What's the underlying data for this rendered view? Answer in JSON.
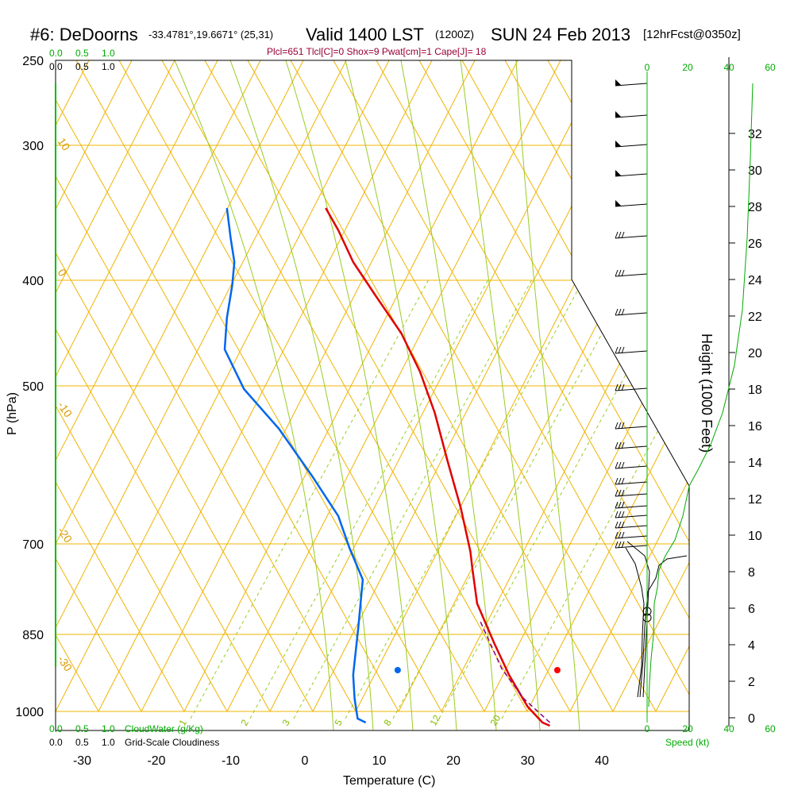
{
  "header": {
    "station": "#6: DeDoorns",
    "coords": "-33.4781°,19.6671° (25,31)",
    "valid": "Valid 1400 LST",
    "zulu": "(1200Z)",
    "date": "SUN 24 Feb 2013",
    "forecast": "[12hrFcst@0350z]",
    "params": "Plcl=651 Tlcl[C]=0 Shox=9 Pwat[cm]=1 Cape[J]= 18"
  },
  "chart_data": {
    "type": "line",
    "xlabel": "Temperature (C)",
    "ylabel": "P (hPa)",
    "y2label": "Height (1000 Feet)",
    "x_ticks": [
      "-30",
      "-20",
      "-10",
      "0",
      "10",
      "20",
      "30",
      "40"
    ],
    "xlim": [
      -35,
      45
    ],
    "p_ticks": [
      "250",
      "300",
      "400",
      "500",
      "700",
      "850",
      "1000"
    ],
    "height_ticks": [
      "0",
      "2",
      "4",
      "6",
      "8",
      "10",
      "12",
      "14",
      "16",
      "18",
      "20",
      "22",
      "24",
      "26",
      "28",
      "30",
      "32"
    ],
    "cloud_scale_top_green": [
      "0.0",
      "0.5",
      "1.0"
    ],
    "cloud_scale_top_black": [
      "0.0",
      "0.5",
      "1.0"
    ],
    "cloud_scale_bottom_green": [
      "0.0",
      "0.5",
      "1.0"
    ],
    "cloud_scale_bottom_black": [
      "0.0",
      "0.5",
      "1.0"
    ],
    "cloudwater_label": "CloudWater (g/Kg)",
    "cloudiness_label": "Grid-Scale Cloudiness",
    "speed_ticks": [
      "0",
      "20",
      "40",
      "60"
    ],
    "speed_label": "Speed (kt)",
    "adiabat_labels_left": [
      "10",
      "0",
      "-10",
      "-20",
      "-30"
    ],
    "adiabat_labels_right": [
      "0",
      "10",
      "20",
      "30"
    ],
    "mixing_ratio_labels": [
      "1",
      "2",
      "3",
      "5",
      "8",
      "12",
      "20"
    ],
    "series": [
      {
        "name": "Temperature",
        "color": "#e00000",
        "points": [
          [
            2.8,
            262
          ],
          [
            4.5,
            290
          ],
          [
            6.5,
            330
          ],
          [
            9.5,
            372
          ],
          [
            13,
            420
          ],
          [
            15.5,
            468
          ],
          [
            17.5,
            520
          ],
          [
            19.2,
            580
          ],
          [
            21.0,
            640
          ],
          [
            22.3,
            695
          ],
          [
            22.5,
            712
          ],
          [
            23.2,
            760
          ],
          [
            25.5,
            810
          ],
          [
            27.5,
            850
          ],
          [
            30.0,
            890
          ],
          [
            32.0,
            910
          ],
          [
            33.0,
            914
          ]
        ]
      },
      {
        "name": "Dewpoint",
        "color": "#0066ee",
        "points": [
          [
            -10.5,
            262
          ],
          [
            -10,
            300
          ],
          [
            -9.5,
            330
          ],
          [
            -9.8,
            360
          ],
          [
            -10.5,
            400
          ],
          [
            -10.8,
            440
          ],
          [
            -8.2,
            490
          ],
          [
            -3.5,
            540
          ],
          [
            1.0,
            600
          ],
          [
            4.5,
            650
          ],
          [
            6.0,
            690
          ],
          [
            7.8,
            730
          ],
          [
            7.2,
            790
          ],
          [
            6.5,
            850
          ],
          [
            6.7,
            880
          ],
          [
            7.1,
            905
          ],
          [
            8.2,
            910
          ]
        ]
      },
      {
        "name": "Parcel",
        "color": "#880088",
        "points": [
          [
            33.0,
            910
          ],
          [
            29.5,
            880
          ],
          [
            26.5,
            842
          ],
          [
            23.5,
            780
          ]
        ]
      }
    ],
    "surface_markers": [
      {
        "name": "temperature",
        "x": 34,
        "p": 911,
        "color": "#ff0000"
      },
      {
        "name": "dewpoint",
        "x": 12.5,
        "p": 911,
        "color": "#0066ee"
      }
    ]
  }
}
